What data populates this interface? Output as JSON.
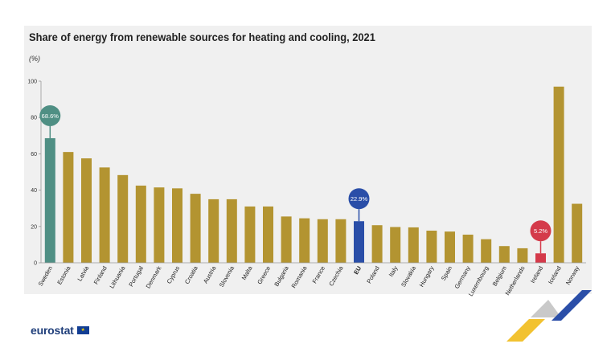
{
  "title": "Share of energy from renewable sources for heating and cooling, 2021",
  "unit": "(%)",
  "logo_text": "eurostat",
  "colors": {
    "default": "#b39431",
    "highlight_teal": "#4f8f84",
    "eu_blue": "#2a4ea8",
    "ireland_red": "#d43a4a",
    "panel": "#f0f0f0"
  },
  "chart_data": {
    "type": "bar",
    "ylim": [
      0,
      100
    ],
    "yticks": [
      0,
      20,
      40,
      60,
      80,
      100
    ],
    "grid": false,
    "categories": [
      "Sweden",
      "Estonia",
      "Latvia",
      "Finland",
      "Lithuania",
      "Portugal",
      "Denmark",
      "Cyprus",
      "Croatia",
      "Austria",
      "Slovenia",
      "Malta",
      "Greece",
      "Bulgaria",
      "Romania",
      "France",
      "Czechia",
      "EU",
      "Poland",
      "Italy",
      "Slovakia",
      "Hungary",
      "Spain",
      "Germany",
      "Luxembourg",
      "Belgium",
      "Netherlands",
      "Ireland",
      "Iceland",
      "Norway"
    ],
    "values": [
      68.6,
      61.0,
      57.5,
      52.5,
      48.3,
      42.5,
      41.5,
      41.0,
      38.0,
      35.0,
      35.0,
      31.0,
      31.0,
      25.5,
      24.5,
      24.0,
      24.0,
      22.9,
      20.7,
      19.7,
      19.5,
      17.7,
      17.2,
      15.5,
      13.0,
      9.2,
      8.0,
      5.2,
      97.0,
      32.5
    ],
    "bar_colors": [
      "highlight_teal",
      "default",
      "default",
      "default",
      "default",
      "default",
      "default",
      "default",
      "default",
      "default",
      "default",
      "default",
      "default",
      "default",
      "default",
      "default",
      "default",
      "eu_blue",
      "default",
      "default",
      "default",
      "default",
      "default",
      "default",
      "default",
      "default",
      "default",
      "ireland_red",
      "default",
      "default"
    ],
    "annotations": [
      {
        "category": "Sweden",
        "label": "68.6%",
        "color": "highlight_teal"
      },
      {
        "category": "EU",
        "label": "22.9%",
        "color": "eu_blue"
      },
      {
        "category": "Ireland",
        "label": "5.2%",
        "color": "ireland_red"
      }
    ],
    "bold_categories": [
      "EU"
    ]
  }
}
